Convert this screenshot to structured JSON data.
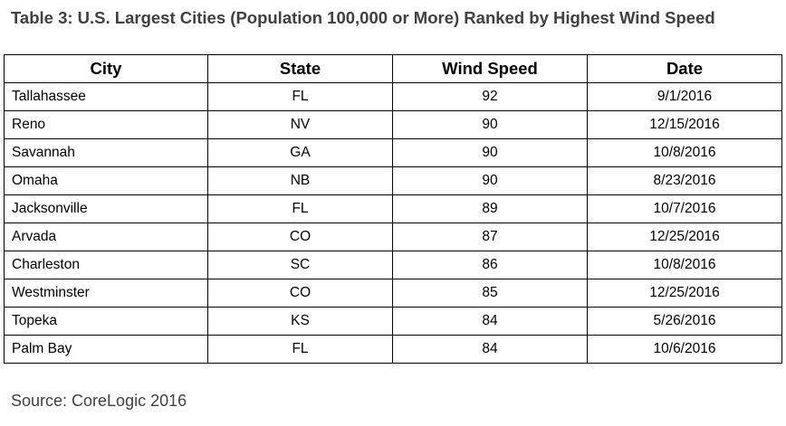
{
  "title": "Table 3: U.S. Largest Cities (Population 100,000 or More) Ranked by Highest Wind Speed",
  "table": {
    "headers": [
      "City",
      "State",
      "Wind Speed",
      "Date"
    ],
    "rows": [
      [
        "Tallahassee",
        "FL",
        "92",
        "9/1/2016"
      ],
      [
        "Reno",
        "NV",
        "90",
        "12/15/2016"
      ],
      [
        "Savannah",
        "GA",
        "90",
        "10/8/2016"
      ],
      [
        "Omaha",
        "NB",
        "90",
        "8/23/2016"
      ],
      [
        "Jacksonville",
        "FL",
        "89",
        "10/7/2016"
      ],
      [
        "Arvada",
        "CO",
        "87",
        "12/25/2016"
      ],
      [
        "Charleston",
        "SC",
        "86",
        "10/8/2016"
      ],
      [
        "Westminster",
        "CO",
        "85",
        "12/25/2016"
      ],
      [
        "Topeka",
        "KS",
        "84",
        "5/26/2016"
      ],
      [
        "Palm Bay",
        "FL",
        "84",
        "10/6/2016"
      ]
    ]
  },
  "source": "Source: CoreLogic 2016",
  "colors": {
    "title_text": "#404040",
    "table_text": "#000000",
    "border": "#000000"
  }
}
